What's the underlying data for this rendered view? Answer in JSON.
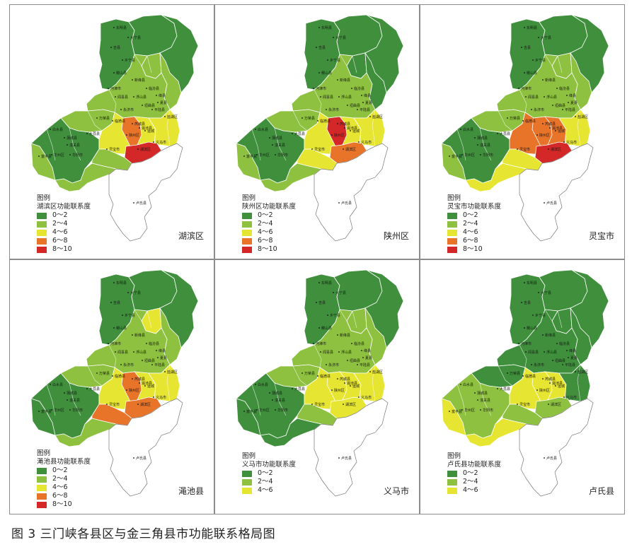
{
  "caption": "图 3  三门峡各县区与金三角县市功能联系格局图",
  "legend_heading": "图例",
  "colors": {
    "c0": "#3f8f3c",
    "c2": "#8dc13f",
    "c4": "#e5e532",
    "c6": "#e8742a",
    "c8": "#d42727",
    "outside": "#ffffff",
    "border": "#ffffff",
    "outline": "#777777"
  },
  "panels": [
    {
      "title": "湖滨区",
      "legend_label": "湖滨区功能联系度",
      "classes": [
        "0～2",
        "2～4",
        "4～6",
        "6～8",
        "8～10"
      ]
    },
    {
      "title": "陕州区",
      "legend_label": "陕州区功能联系度",
      "classes": [
        "0～2",
        "2～4",
        "4～6",
        "6～8",
        "8～10"
      ]
    },
    {
      "title": "灵宝市",
      "legend_label": "灵宝市功能联系度",
      "classes": [
        "0～2",
        "2～4",
        "4～6",
        "6～8",
        "8～10"
      ]
    },
    {
      "title": "渑池县",
      "legend_label": "渑池县功能联系度",
      "classes": [
        "0～2",
        "2～4",
        "4～6",
        "6～8",
        "8～10"
      ]
    },
    {
      "title": "义马市",
      "legend_label": "义马市功能联系度",
      "classes": [
        "0～2",
        "2～4",
        "4～6"
      ]
    },
    {
      "title": "卢氏县",
      "legend_label": "卢氏县功能联系度",
      "classes": [
        "0～2",
        "2～4",
        "4～6"
      ]
    }
  ],
  "regions": {
    "north_west": [
      "c0",
      "c0",
      "c0",
      "c0",
      "c0",
      "c0"
    ],
    "north_core": [
      "c0",
      "c0",
      "c0",
      "c0",
      "c0",
      "c0"
    ],
    "north_east": [
      "c0",
      "c0",
      "c0",
      "c0",
      "c0",
      "c0"
    ],
    "north_mid_patch": [
      "c2",
      "c0",
      "c2",
      "c4",
      "c2",
      "c0"
    ],
    "north_east_strip": [
      "c2",
      "c0",
      "c2",
      "c2",
      "c2",
      "c0"
    ],
    "mid_band": [
      "c2",
      "c2",
      "c2",
      "c2",
      "c2",
      "c0"
    ],
    "mid_west": [
      "c2",
      "c2",
      "c2",
      "c2",
      "c2",
      "c0"
    ],
    "west_block": [
      "c0",
      "c0",
      "c0",
      "c0",
      "c0",
      "c2"
    ],
    "far_west": [
      "c2",
      "c2",
      "c2",
      "c0",
      "c0",
      "c4"
    ],
    "center_yellow": [
      "c4",
      "c4",
      "c6",
      "c4",
      "c4",
      "c4"
    ],
    "east_yellow": [
      "c4",
      "c4",
      "c4",
      "c4",
      "c4",
      "c0"
    ],
    "center_core": [
      "c6",
      "c8",
      "c6",
      "c6",
      "c4",
      "c4"
    ],
    "south_core": [
      "c8",
      "c6",
      "c8",
      "c6",
      "c4",
      "c2"
    ],
    "south_belt": [
      "c2",
      "c4",
      "c4",
      "c6",
      "c2",
      "c2"
    ],
    "south_west_belt": [
      "c2",
      "c2",
      "c4",
      "c2",
      "c0",
      "c4"
    ]
  },
  "place_labels": [
    "东明县",
    "大宁县",
    "吉县",
    "乡宁县",
    "稷山县",
    "新绛县",
    "河津市",
    "临汾县",
    "浮山县",
    "绛县",
    "闻喜县",
    "垣曲县",
    "平陆县",
    "夏县",
    "盐湖区",
    "永济市",
    "芮城县",
    "临猗县",
    "万荣县",
    "运城",
    "大荔县",
    "潼关县",
    "华阴市",
    "华州区",
    "灵宝市",
    "陕州区",
    "湖滨区",
    "渑池县",
    "义马市",
    "卢氏县",
    "白水县",
    "蒲城县",
    "富平县"
  ]
}
